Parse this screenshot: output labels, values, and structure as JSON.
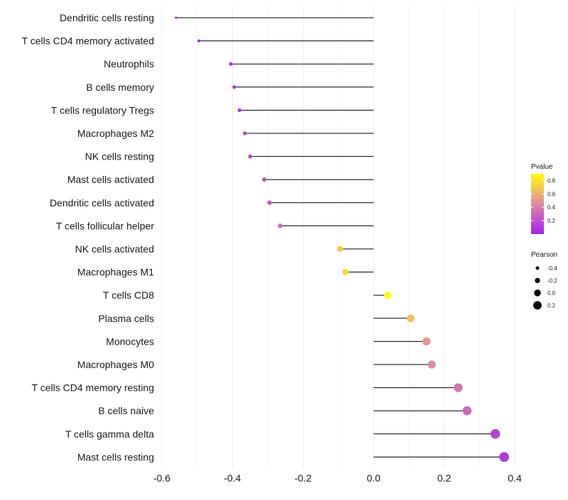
{
  "chart_data": {
    "type": "lollipop",
    "title": "",
    "xlabel": "",
    "ylabel": "",
    "xlim": [
      -0.6,
      0.4
    ],
    "x_ticks": [
      -0.6,
      -0.4,
      -0.2,
      0.0,
      0.2,
      0.4
    ],
    "x_tick_labels": [
      "-0.6",
      "-0.4",
      "-0.2",
      "0.0",
      "0.2",
      "0.4"
    ],
    "grid": "vertical",
    "baseline": 0.0,
    "categories": [
      "Dendritic cells resting",
      "T cells CD4 memory activated",
      "Neutrophils",
      "B cells memory",
      "T cells regulatory  Tregs ",
      "Macrophages M2",
      "NK cells resting",
      "Mast cells activated",
      "Dendritic cells activated",
      "T cells follicular helper",
      "NK cells activated",
      "Macrophages M1",
      "T cells CD8",
      "Plasma cells",
      "Monocytes",
      "Macrophages M0",
      "T cells CD4 memory resting",
      "B cells naive",
      "T cells gamma delta",
      "Mast cells resting"
    ],
    "values": [
      -0.56,
      -0.495,
      -0.405,
      -0.395,
      -0.38,
      -0.365,
      -0.35,
      -0.31,
      -0.295,
      -0.265,
      -0.095,
      -0.08,
      0.04,
      0.105,
      0.15,
      0.165,
      0.24,
      0.265,
      0.345,
      0.37
    ],
    "pvalues": [
      0.0,
      0.0,
      0.05,
      0.08,
      0.1,
      0.12,
      0.15,
      0.2,
      0.25,
      0.35,
      0.7,
      0.75,
      0.95,
      0.65,
      0.5,
      0.45,
      0.35,
      0.3,
      0.15,
      0.12
    ],
    "legend": {
      "color": {
        "title": "Pvalue",
        "ticks": [
          0.8,
          0.6,
          0.4,
          0.2
        ],
        "tick_labels": [
          "0.8",
          "0.6",
          "0.4",
          "0.2"
        ],
        "range": [
          0.0,
          0.9
        ],
        "low_color": "#a020f0",
        "mid_color": "#e08aa0",
        "high_color": "#ffff00"
      },
      "size": {
        "title": "Pearson",
        "ticks": [
          -0.4,
          -0.2,
          0.0,
          0.2
        ],
        "tick_labels": [
          "-0.4",
          "-0.2",
          "0.0",
          "0.2"
        ]
      },
      "placement": "right"
    }
  },
  "colors": {
    "grid": "#ebebeb",
    "stem": "#000000",
    "text": "#1a1a1a"
  }
}
